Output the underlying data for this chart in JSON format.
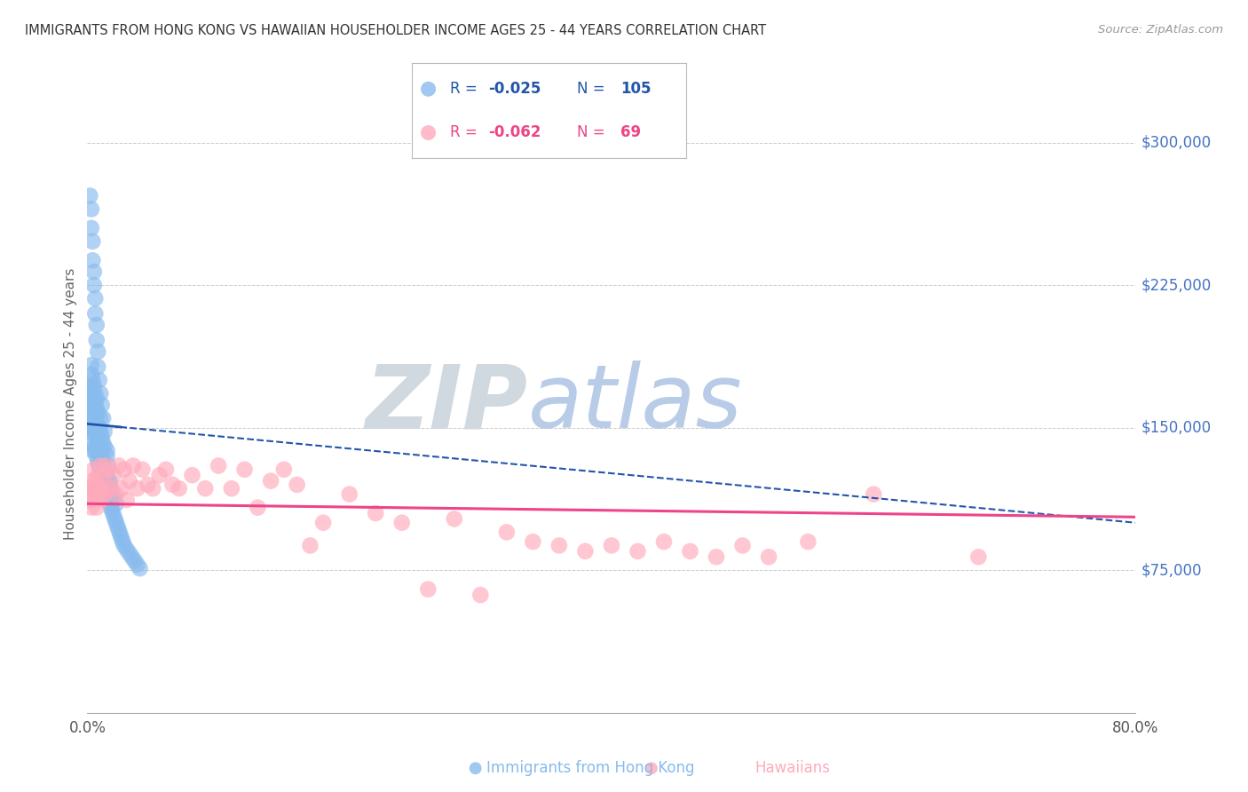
{
  "title": "IMMIGRANTS FROM HONG KONG VS HAWAIIAN HOUSEHOLDER INCOME AGES 25 - 44 YEARS CORRELATION CHART",
  "source": "Source: ZipAtlas.com",
  "ylabel": "Householder Income Ages 25 - 44 years",
  "ytick_labels": [
    "$75,000",
    "$150,000",
    "$225,000",
    "$300,000"
  ],
  "ytick_values": [
    75000,
    150000,
    225000,
    300000
  ],
  "ymin": 0,
  "ymax": 325000,
  "xmin": 0.0,
  "xmax": 0.8,
  "legend_r1": "R = -0.025",
  "legend_n1": "N = 105",
  "legend_r2": "R = -0.062",
  "legend_n2": "N =  69",
  "blue_color": "#88bbee",
  "blue_edge": "#88bbee",
  "blue_trend_color": "#2255aa",
  "pink_color": "#ffaabb",
  "pink_edge": "#ffaabb",
  "pink_trend_color": "#ee4488",
  "watermark_zip": "ZIP",
  "watermark_atlas": "atlas",
  "blue_x": [
    0.001,
    0.001,
    0.002,
    0.002,
    0.002,
    0.002,
    0.003,
    0.003,
    0.003,
    0.003,
    0.003,
    0.003,
    0.003,
    0.004,
    0.004,
    0.004,
    0.004,
    0.004,
    0.004,
    0.005,
    0.005,
    0.005,
    0.005,
    0.005,
    0.006,
    0.006,
    0.006,
    0.006,
    0.006,
    0.007,
    0.007,
    0.007,
    0.007,
    0.007,
    0.008,
    0.008,
    0.008,
    0.008,
    0.009,
    0.009,
    0.009,
    0.01,
    0.01,
    0.01,
    0.01,
    0.011,
    0.011,
    0.011,
    0.012,
    0.012,
    0.012,
    0.013,
    0.013,
    0.013,
    0.014,
    0.014,
    0.015,
    0.015,
    0.015,
    0.016,
    0.016,
    0.017,
    0.017,
    0.018,
    0.018,
    0.019,
    0.02,
    0.02,
    0.021,
    0.022,
    0.022,
    0.023,
    0.024,
    0.025,
    0.026,
    0.027,
    0.028,
    0.03,
    0.032,
    0.034,
    0.036,
    0.038,
    0.04,
    0.002,
    0.003,
    0.003,
    0.004,
    0.004,
    0.005,
    0.005,
    0.006,
    0.006,
    0.007,
    0.007,
    0.008,
    0.008,
    0.009,
    0.01,
    0.011,
    0.012,
    0.013,
    0.015,
    0.016,
    0.017,
    0.019
  ],
  "blue_y": [
    155000,
    160000,
    148000,
    155000,
    162000,
    168000,
    142000,
    150000,
    158000,
    165000,
    172000,
    178000,
    183000,
    138000,
    148000,
    155000,
    162000,
    168000,
    175000,
    140000,
    150000,
    158000,
    165000,
    172000,
    138000,
    148000,
    155000,
    162000,
    168000,
    135000,
    145000,
    152000,
    160000,
    165000,
    132000,
    142000,
    150000,
    158000,
    130000,
    140000,
    150000,
    128000,
    138000,
    148000,
    155000,
    125000,
    135000,
    145000,
    122000,
    132000,
    142000,
    120000,
    130000,
    140000,
    118000,
    128000,
    115000,
    125000,
    135000,
    112000,
    122000,
    110000,
    120000,
    108000,
    118000,
    106000,
    104000,
    114000,
    102000,
    100000,
    110000,
    98000,
    96000,
    94000,
    92000,
    90000,
    88000,
    86000,
    84000,
    82000,
    80000,
    78000,
    76000,
    272000,
    265000,
    255000,
    248000,
    238000,
    232000,
    225000,
    218000,
    210000,
    204000,
    196000,
    190000,
    182000,
    175000,
    168000,
    162000,
    155000,
    148000,
    138000,
    130000,
    122000,
    112000
  ],
  "pink_x": [
    0.001,
    0.002,
    0.003,
    0.004,
    0.004,
    0.005,
    0.005,
    0.006,
    0.006,
    0.007,
    0.007,
    0.008,
    0.009,
    0.01,
    0.01,
    0.011,
    0.012,
    0.013,
    0.014,
    0.015,
    0.016,
    0.018,
    0.02,
    0.022,
    0.024,
    0.026,
    0.028,
    0.03,
    0.032,
    0.035,
    0.038,
    0.042,
    0.046,
    0.05,
    0.055,
    0.06,
    0.065,
    0.07,
    0.08,
    0.09,
    0.1,
    0.11,
    0.12,
    0.13,
    0.14,
    0.15,
    0.16,
    0.17,
    0.18,
    0.2,
    0.22,
    0.24,
    0.26,
    0.28,
    0.3,
    0.32,
    0.34,
    0.36,
    0.38,
    0.4,
    0.42,
    0.44,
    0.46,
    0.48,
    0.5,
    0.52,
    0.55,
    0.6,
    0.68
  ],
  "pink_y": [
    112000,
    118000,
    108000,
    122000,
    115000,
    128000,
    118000,
    112000,
    122000,
    118000,
    108000,
    125000,
    115000,
    130000,
    118000,
    112000,
    125000,
    115000,
    130000,
    118000,
    128000,
    118000,
    125000,
    115000,
    130000,
    118000,
    128000,
    112000,
    122000,
    130000,
    118000,
    128000,
    120000,
    118000,
    125000,
    128000,
    120000,
    118000,
    125000,
    118000,
    130000,
    118000,
    128000,
    108000,
    122000,
    128000,
    120000,
    88000,
    100000,
    115000,
    105000,
    100000,
    65000,
    102000,
    62000,
    95000,
    90000,
    88000,
    85000,
    88000,
    85000,
    90000,
    85000,
    82000,
    88000,
    82000,
    90000,
    115000,
    82000
  ],
  "blue_trend_x": [
    0.0,
    0.8
  ],
  "blue_trend_y": [
    152000,
    100000
  ],
  "pink_trend_x": [
    0.0,
    0.8
  ],
  "pink_trend_y": [
    110000,
    103000
  ],
  "background_color": "#ffffff",
  "grid_color": "#cccccc",
  "title_color": "#333333",
  "right_label_color": "#4472c4",
  "watermark_zip_color": "#d0d8e0",
  "watermark_atlas_color": "#b8cce8"
}
